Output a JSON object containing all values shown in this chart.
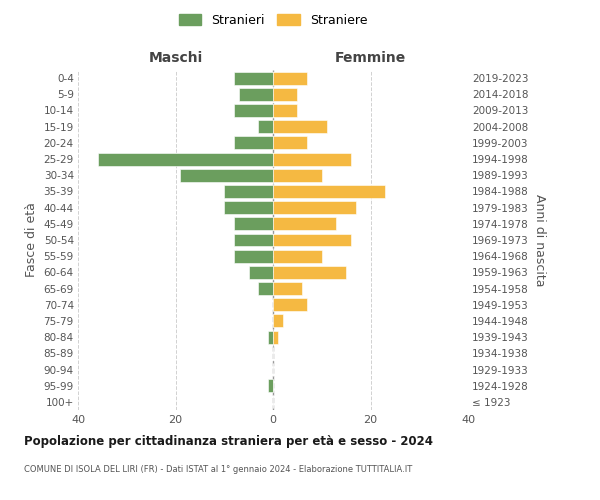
{
  "age_groups": [
    "100+",
    "95-99",
    "90-94",
    "85-89",
    "80-84",
    "75-79",
    "70-74",
    "65-69",
    "60-64",
    "55-59",
    "50-54",
    "45-49",
    "40-44",
    "35-39",
    "30-34",
    "25-29",
    "20-24",
    "15-19",
    "10-14",
    "5-9",
    "0-4"
  ],
  "birth_years": [
    "≤ 1923",
    "1924-1928",
    "1929-1933",
    "1934-1938",
    "1939-1943",
    "1944-1948",
    "1949-1953",
    "1954-1958",
    "1959-1963",
    "1964-1968",
    "1969-1973",
    "1974-1978",
    "1979-1983",
    "1984-1988",
    "1989-1993",
    "1994-1998",
    "1999-2003",
    "2004-2008",
    "2009-2013",
    "2014-2018",
    "2019-2023"
  ],
  "males": [
    0,
    1,
    0,
    0,
    1,
    0,
    0,
    3,
    5,
    8,
    8,
    8,
    10,
    10,
    19,
    36,
    8,
    3,
    8,
    7,
    8
  ],
  "females": [
    0,
    0,
    0,
    0,
    1,
    2,
    7,
    6,
    15,
    10,
    16,
    13,
    17,
    23,
    10,
    16,
    7,
    11,
    5,
    5,
    7
  ],
  "male_color": "#6b9e5e",
  "female_color": "#f5b942",
  "male_label": "Stranieri",
  "female_label": "Straniere",
  "maschi_label": "Maschi",
  "femmine_label": "Femmine",
  "fasce_label": "Fasce di età",
  "anni_label": "Anni di nascita",
  "title": "Popolazione per cittadinanza straniera per età e sesso - 2024",
  "subtitle": "COMUNE DI ISOLA DEL LIRI (FR) - Dati ISTAT al 1° gennaio 2024 - Elaborazione TUTTITALIA.IT",
  "xlim": 40,
  "bg_color": "#ffffff",
  "grid_color": "#cccccc",
  "bar_height": 0.8
}
